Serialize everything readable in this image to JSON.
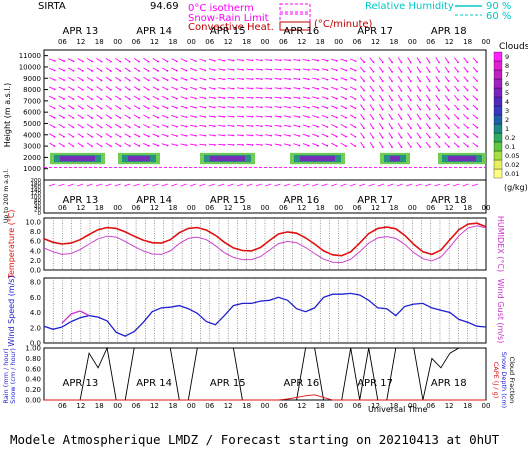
{
  "header": {
    "station": "SIRTA",
    "coords": "94.69",
    "legend": [
      {
        "label": "0°C isotherm",
        "style": "dashed",
        "color": "#ff00ff"
      },
      {
        "label": "Snow-Rain Limit",
        "style": "dashed",
        "color": "#ff00ff"
      },
      {
        "label": "Convective Heat.",
        "style": "solid",
        "color": "#c00000"
      }
    ],
    "legend_unit": "(°C/minute)",
    "rh_label": "Relative Humidity",
    "rh_levels": [
      "90 %",
      "60 %"
    ]
  },
  "footer": "Modele Atmospherique LMDZ / Forecast starting on 20210413 at 0hUT",
  "time_axis": {
    "days": [
      "APR 13",
      "APR 14",
      "APR 15",
      "APR 16",
      "APR 17",
      "APR 18"
    ],
    "hours": [
      "06",
      "12",
      "18",
      "00"
    ],
    "xlabel": "Universal Time"
  },
  "chart_data": [
    {
      "type": "heatmap",
      "name": "clouds-wind",
      "ylabel": "Height (m a.s.l.)",
      "ylim": [
        0,
        11500
      ],
      "yticks": [
        "1000",
        "2000",
        "3000",
        "4000",
        "5000",
        "6000",
        "7000",
        "8000",
        "9000",
        "10000",
        "11000"
      ],
      "colorbar": {
        "title": "Clouds",
        "unit": "(g/kg)",
        "levels": [
          "0.01",
          "0.02",
          "0.05",
          "0.1",
          "0.2",
          "1",
          "2",
          "3",
          "4",
          "5",
          "6",
          "7",
          "8",
          "9"
        ],
        "colors": [
          "#ffff80",
          "#e8f060",
          "#a8e040",
          "#60c840",
          "#30a860",
          "#208888",
          "#2060a8",
          "#3838c0",
          "#5028c0",
          "#8020c0",
          "#a020c0",
          "#c020c0",
          "#e020d0",
          "#ff20ff"
        ]
      },
      "cloud_base_m": 1400,
      "cloud_top_m": 2400
    },
    {
      "type": "line",
      "name": "surface-wind-profile",
      "ylabel": "Up to 200 m a.g.l.",
      "yticks": [
        "0",
        "20",
        "40",
        "60",
        "80",
        "100",
        "120",
        "140",
        "160",
        "180",
        "200"
      ]
    },
    {
      "type": "line",
      "name": "temperature",
      "ylabel": "Temperature (°C)",
      "ylabel2": "HUMIDEX (°C)",
      "ylim": [
        0,
        12
      ],
      "yticks": [
        "0.0",
        "2.0",
        "4.0",
        "6.0",
        "8.0",
        "10.0"
      ],
      "series": [
        {
          "color": "#e01010",
          "values": [
            7.2,
            6.4,
            6.0,
            6.2,
            7.0,
            8.2,
            9.3,
            9.8,
            9.6,
            8.8,
            7.8,
            6.9,
            6.3,
            6.2,
            7.0,
            8.6,
            9.6,
            9.8,
            9.2,
            8.0,
            6.4,
            5.1,
            4.5,
            4.4,
            5.2,
            6.8,
            8.3,
            8.8,
            8.5,
            7.4,
            6.0,
            4.4,
            3.5,
            3.3,
            4.2,
            6.2,
            8.4,
            9.6,
            9.9,
            9.5,
            8.0,
            5.9,
            4.2,
            3.6,
            4.6,
            7.0,
            9.3,
            10.6,
            10.8,
            10.0
          ]
        },
        {
          "color": "#cc44cc",
          "values": [
            5.1,
            4.2,
            3.6,
            3.8,
            4.7,
            6.0,
            7.2,
            7.8,
            7.6,
            6.6,
            5.4,
            4.4,
            3.7,
            3.6,
            4.4,
            6.1,
            7.3,
            7.6,
            7.0,
            5.6,
            4.0,
            2.9,
            2.4,
            2.4,
            3.1,
            4.6,
            6.1,
            6.6,
            6.3,
            5.2,
            3.8,
            2.5,
            1.8,
            1.7,
            2.5,
            4.2,
            6.2,
            7.4,
            7.7,
            7.3,
            5.9,
            4.0,
            2.6,
            2.1,
            3.0,
            5.3,
            7.9,
            9.7,
            10.2,
            9.7
          ]
        }
      ]
    },
    {
      "type": "line",
      "name": "wind-speed",
      "ylabel": "Wind Speed (m/s)",
      "ylabel2": "Wind Gust (m/s)",
      "ylim": [
        0,
        8
      ],
      "yticks": [
        "0.0",
        "2.0",
        "4.0",
        "6.0",
        "8.0"
      ],
      "series": [
        {
          "color": "#2020d0",
          "values": [
            2.2,
            1.8,
            2.1,
            2.8,
            3.3,
            3.6,
            3.4,
            2.9,
            1.4,
            0.9,
            1.5,
            2.7,
            4.1,
            4.6,
            4.7,
            4.9,
            4.5,
            3.9,
            2.8,
            2.4,
            3.6,
            4.9,
            5.2,
            5.2,
            5.5,
            5.6,
            6.0,
            5.6,
            4.5,
            4.1,
            4.6,
            6.0,
            6.4,
            6.4,
            6.5,
            6.3,
            5.6,
            4.6,
            4.5,
            3.6,
            4.8,
            5.1,
            5.2,
            4.6,
            4.3,
            4.0,
            3.1,
            2.7,
            2.2,
            2.1
          ]
        },
        {
          "color": "#cc33cc",
          "values": [
            null,
            null,
            2.6,
            3.8,
            4.2,
            3.6,
            null,
            null,
            null,
            null,
            null,
            null,
            null,
            null,
            null,
            null,
            null,
            null,
            null,
            null,
            null,
            null,
            null,
            null,
            null,
            null,
            null,
            null,
            null,
            null,
            null,
            null,
            null,
            null,
            null,
            null,
            null,
            null,
            null,
            null,
            null,
            null,
            null,
            null,
            null,
            null,
            null,
            null,
            null,
            null
          ]
        }
      ]
    },
    {
      "type": "line",
      "name": "rain-snow",
      "ylabel": "Rain (mm / hour)",
      "ylabel_b": "Snow (cm / hour)",
      "ylabel2": "CAPE (J / g)",
      "ylabel2_b": "Snow Depth (cm)",
      "ylabel2_c": "Cloud Fraction",
      "ylim": [
        0,
        1.0
      ],
      "yticks": [
        "0.00",
        "0.20",
        "0.40",
        "0.60",
        "0.80",
        "1.00"
      ],
      "series": [
        {
          "color": "#000000",
          "values": [
            0.0,
            0.0,
            0.0,
            0.0,
            0.0,
            0.9,
            0.62,
            1.0,
            0.0,
            0.0,
            1.0,
            1.0,
            1.0,
            1.0,
            1.0,
            0.0,
            0.0,
            1.0,
            1.0,
            1.0,
            1.0,
            1.0,
            0.0,
            0.0,
            0.0,
            0.0,
            0.0,
            0.0,
            0.0,
            1.0,
            1.0,
            0.0,
            0.0,
            0.0,
            1.0,
            0.0,
            1.0,
            0.0,
            0.0,
            1.0,
            1.0,
            1.0,
            0.0,
            0.8,
            0.62,
            0.9,
            1.0,
            1.0,
            1.0,
            1.0
          ]
        },
        {
          "color": "#e01010",
          "values": [
            0.0,
            0.0,
            0.0,
            0.0,
            0.0,
            0.0,
            0.0,
            0.0,
            0.0,
            0.0,
            0.0,
            0.0,
            0.0,
            0.0,
            0.0,
            0.0,
            0.0,
            0.0,
            0.0,
            0.0,
            0.0,
            0.0,
            0.0,
            0.0,
            0.0,
            0.0,
            0.0,
            0.02,
            0.05,
            0.08,
            0.1,
            0.05,
            0.0,
            0.0,
            0.0,
            0.0,
            0.0,
            0.0,
            0.0,
            0.0,
            0.0,
            0.0,
            0.0,
            0.0,
            0.0,
            0.0,
            0.0,
            0.0,
            0.0,
            0.0
          ]
        }
      ]
    }
  ]
}
